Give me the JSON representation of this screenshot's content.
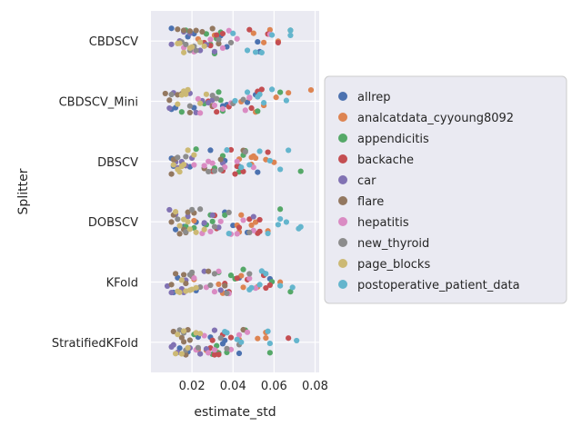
{
  "chart_data": {
    "type": "scatter",
    "style": "strip",
    "xlabel": "estimate_std",
    "ylabel": "Splitter",
    "xlim": [
      0.0,
      0.082
    ],
    "xticks": [
      0.02,
      0.04,
      0.06,
      0.08
    ],
    "xtick_labels": [
      "0.02",
      "0.04",
      "0.06",
      "0.08"
    ],
    "grid": true,
    "legend_position": "right",
    "categories": [
      "CBDSCV",
      "CBDSCV_Mini",
      "DBSCV",
      "DOBSCV",
      "KFold",
      "StratifiedKFold"
    ],
    "series": [
      {
        "name": "allrep",
        "color": "#4c72b0",
        "values": [
          [
            0.01,
            0.053,
            0.034,
            0.021,
            0.037,
            0.052,
            0.018
          ],
          [
            0.012,
            0.021,
            0.047,
            0.035,
            0.037,
            0.01,
            0.051
          ],
          [
            0.01,
            0.019,
            0.043,
            0.029,
            0.011,
            0.036,
            0.052
          ],
          [
            0.012,
            0.036,
            0.022,
            0.047,
            0.016,
            0.04,
            0.026
          ],
          [
            0.011,
            0.037,
            0.058,
            0.043,
            0.022,
            0.013,
            0.055
          ],
          [
            0.029,
            0.036,
            0.023,
            0.043,
            0.035,
            0.014,
            0.018
          ]
        ]
      },
      {
        "name": "analcatdata_cyyoung8092",
        "color": "#dd8452",
        "values": [
          [
            0.058,
            0.031,
            0.055,
            0.062,
            0.023,
            0.05,
            0.021
          ],
          [
            0.078,
            0.048,
            0.061,
            0.055,
            0.051,
            0.044,
            0.067
          ],
          [
            0.043,
            0.05,
            0.051,
            0.056,
            0.049,
            0.06,
            0.049
          ],
          [
            0.044,
            0.043,
            0.021,
            0.057,
            0.042,
            0.049,
            0.051
          ],
          [
            0.063,
            0.052,
            0.035,
            0.021,
            0.045,
            0.044,
            0.033
          ],
          [
            0.052,
            0.056,
            0.043,
            0.023,
            0.032,
            0.056,
            0.027
          ]
        ]
      },
      {
        "name": "appendicitis",
        "color": "#55a868",
        "values": [
          [
            0.068,
            0.032,
            0.034,
            0.017,
            0.031,
            0.027,
            0.029
          ],
          [
            0.063,
            0.034,
            0.026,
            0.033,
            0.015,
            0.035,
            0.052
          ],
          [
            0.073,
            0.043,
            0.031,
            0.035,
            0.022,
            0.045,
            0.046
          ],
          [
            0.063,
            0.027,
            0.029,
            0.021,
            0.03,
            0.017,
            0.036
          ],
          [
            0.068,
            0.039,
            0.041,
            0.038,
            0.033,
            0.059,
            0.045
          ],
          [
            0.058,
            0.032,
            0.033,
            0.046,
            0.037,
            0.021,
            0.03
          ]
        ]
      },
      {
        "name": "backache",
        "color": "#c44e52",
        "values": [
          [
            0.062,
            0.029,
            0.032,
            0.057,
            0.035,
            0.026,
            0.048
          ],
          [
            0.049,
            0.03,
            0.038,
            0.028,
            0.054,
            0.052,
            0.032
          ],
          [
            0.057,
            0.042,
            0.045,
            0.039,
            0.03,
            0.035,
            0.041
          ],
          [
            0.052,
            0.032,
            0.053,
            0.031,
            0.043,
            0.053,
            0.048
          ],
          [
            0.055,
            0.047,
            0.038,
            0.036,
            0.042,
            0.058,
            0.056
          ],
          [
            0.067,
            0.029,
            0.03,
            0.035,
            0.039,
            0.033,
            0.031
          ]
        ]
      },
      {
        "name": "car",
        "color": "#8172b3",
        "values": [
          [
            0.01,
            0.024,
            0.031,
            0.019,
            0.027,
            0.016,
            0.014
          ],
          [
            0.028,
            0.009,
            0.022,
            0.025,
            0.019,
            0.03,
            0.011
          ],
          [
            0.017,
            0.012,
            0.035,
            0.015,
            0.026,
            0.02,
            0.013
          ],
          [
            0.009,
            0.05,
            0.026,
            0.012,
            0.033,
            0.018,
            0.03
          ],
          [
            0.008,
            0.017,
            0.026,
            0.015,
            0.034,
            0.01,
            0.016
          ],
          [
            0.01,
            0.024,
            0.031,
            0.027,
            0.011,
            0.019,
            0.013
          ]
        ]
      },
      {
        "name": "flare",
        "color": "#937860",
        "values": [
          [
            0.013,
            0.025,
            0.016,
            0.019,
            0.022,
            0.03,
            0.033
          ],
          [
            0.019,
            0.007,
            0.017,
            0.015,
            0.03,
            0.013,
            0.009
          ],
          [
            0.01,
            0.011,
            0.015,
            0.026,
            0.012,
            0.034,
            0.045
          ],
          [
            0.011,
            0.016,
            0.014,
            0.021,
            0.017,
            0.01,
            0.018
          ],
          [
            0.016,
            0.01,
            0.012,
            0.028,
            0.02,
            0.036,
            0.017
          ],
          [
            0.016,
            0.017,
            0.011,
            0.019,
            0.015,
            0.045,
            0.018
          ]
        ]
      },
      {
        "name": "hepatitis",
        "color": "#da8bc3",
        "values": [
          [
            0.042,
            0.038,
            0.058,
            0.021,
            0.035,
            0.016,
            0.029
          ],
          [
            0.046,
            0.024,
            0.035,
            0.031,
            0.039,
            0.048,
            0.023
          ],
          [
            0.028,
            0.042,
            0.03,
            0.036,
            0.026,
            0.021,
            0.05
          ],
          [
            0.029,
            0.05,
            0.039,
            0.045,
            0.034,
            0.025,
            0.042
          ],
          [
            0.048,
            0.033,
            0.021,
            0.031,
            0.027,
            0.051,
            0.038
          ],
          [
            0.039,
            0.043,
            0.026,
            0.022,
            0.047,
            0.028,
            0.031
          ]
        ]
      },
      {
        "name": "new_thyroid",
        "color": "#8c8c8c",
        "values": [
          [
            0.017,
            0.021,
            0.015,
            0.033,
            0.019,
            0.039,
            0.022
          ],
          [
            0.03,
            0.019,
            0.045,
            0.032,
            0.017,
            0.04,
            0.01
          ],
          [
            0.028,
            0.034,
            0.013,
            0.015,
            0.031,
            0.046,
            0.017
          ],
          [
            0.048,
            0.024,
            0.038,
            0.013,
            0.02,
            0.031,
            0.017
          ],
          [
            0.031,
            0.019,
            0.037,
            0.024,
            0.048,
            0.02,
            0.029
          ],
          [
            0.014,
            0.017,
            0.043,
            0.037,
            0.016,
            0.034,
            0.023
          ]
        ]
      },
      {
        "name": "page_blocks",
        "color": "#ccb974",
        "values": [
          [
            0.016,
            0.024,
            0.014,
            0.019,
            0.026,
            0.02,
            0.013
          ],
          [
            0.016,
            0.018,
            0.013,
            0.027,
            0.024,
            0.015,
            0.017
          ],
          [
            0.016,
            0.011,
            0.013,
            0.021,
            0.014,
            0.018,
            0.015
          ],
          [
            0.016,
            0.019,
            0.014,
            0.026,
            0.012,
            0.022,
            0.018
          ],
          [
            0.019,
            0.015,
            0.013,
            0.02,
            0.022,
            0.014,
            0.017
          ],
          [
            0.013,
            0.018,
            0.024,
            0.022,
            0.012,
            0.015,
            0.016
          ]
        ]
      },
      {
        "name": "postoperative_patient_data",
        "color": "#64b5cd",
        "values": [
          [
            0.068,
            0.059,
            0.051,
            0.047,
            0.054,
            0.068,
            0.04
          ],
          [
            0.059,
            0.066,
            0.055,
            0.047,
            0.052,
            0.041,
            0.053
          ],
          [
            0.067,
            0.037,
            0.053,
            0.048,
            0.058,
            0.063,
            0.044
          ],
          [
            0.066,
            0.073,
            0.063,
            0.062,
            0.038,
            0.072,
            0.057
          ],
          [
            0.069,
            0.053,
            0.048,
            0.056,
            0.054,
            0.049,
            0.063
          ],
          [
            0.071,
            0.058,
            0.042,
            0.044,
            0.037,
            0.057,
            0.036
          ]
        ]
      }
    ]
  }
}
